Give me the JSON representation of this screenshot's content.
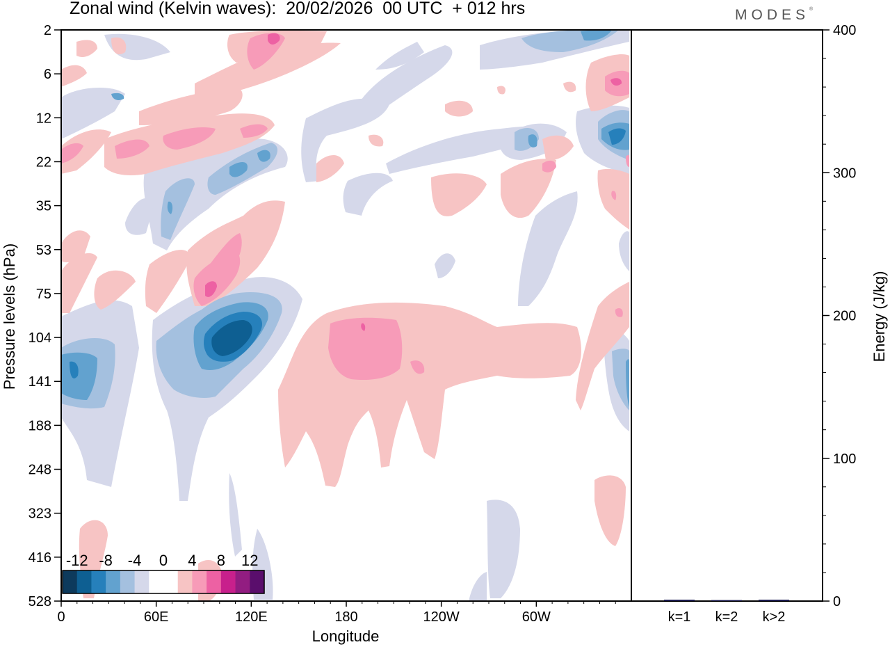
{
  "title": "Zonal wind (Kelvin waves):  20/02/2026  00 UTC  + 012 hrs",
  "logo": "MODES",
  "chart_data": [
    {
      "type": "heatmap",
      "title": "Zonal wind (Kelvin waves):  20/02/2026  00 UTC  + 012 hrs",
      "xlabel": "Longitude",
      "ylabel": "Pressure levels (hPa)",
      "x_ticks": [
        "0",
        "60E",
        "120E",
        "180",
        "120W",
        "60W"
      ],
      "y_ticks": [
        "2",
        "6",
        "12",
        "22",
        "35",
        "53",
        "75",
        "104",
        "141",
        "188",
        "248",
        "323",
        "416",
        "528"
      ],
      "colorbar": {
        "labels": [
          "-12",
          "-8",
          "-4",
          "0",
          "4",
          "8",
          "12"
        ],
        "colors": [
          "#0d3a5c",
          "#0e5f92",
          "#2680bb",
          "#62a2cf",
          "#a4c0df",
          "#d5d8ea",
          "#ffffff",
          "#ffffff",
          "#f7c4c4",
          "#f79bb8",
          "#ed61a3",
          "#c8208c",
          "#921d81",
          "#5a0e6c"
        ]
      },
      "features": [
        {
          "name": "negative-anomaly-104-141",
          "sign": "negative",
          "lon_range": [
            90,
            125
          ],
          "level_range": [
            75,
            141
          ],
          "peak": -12
        },
        {
          "name": "negative-anomaly-0E-141",
          "sign": "negative",
          "lon_range": [
            0,
            20
          ],
          "level_range": [
            104,
            188
          ],
          "peak": -6
        },
        {
          "name": "positive-anomaly-180",
          "sign": "positive",
          "lon_range": [
            170,
            205
          ],
          "level_range": [
            104,
            141
          ],
          "peak": 8
        },
        {
          "name": "positive-anomaly-75",
          "sign": "positive",
          "lon_range": [
            90,
            100
          ],
          "level_range": [
            53,
            104
          ],
          "peak": 8
        },
        {
          "name": "positive-anomaly-2",
          "sign": "positive",
          "lon_range": [
            120,
            135
          ],
          "level_range": [
            2,
            6
          ],
          "peak": 8
        },
        {
          "name": "negative-anomaly-12E-end",
          "sign": "negative",
          "lon_range": [
            345,
            360
          ],
          "level_range": [
            12,
            22
          ],
          "peak": -6
        }
      ]
    },
    {
      "type": "bar",
      "categories": [
        "k=1",
        "k=2",
        "k>2"
      ],
      "values": [
        1,
        0.5,
        1
      ],
      "ylabel": "Energy (J/kg)",
      "ylim": [
        0,
        400
      ],
      "y_ticks": [
        "0",
        "100",
        "200",
        "300",
        "400"
      ],
      "bar_color": "#1a1a4e"
    }
  ]
}
